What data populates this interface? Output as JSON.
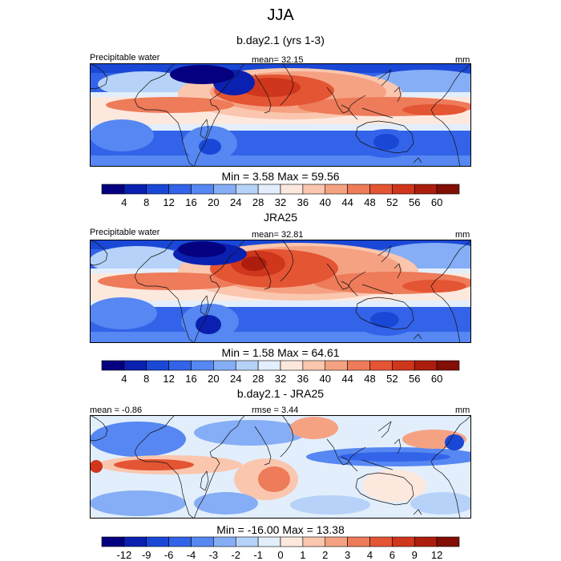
{
  "chart_data": {
    "type": "heatmap",
    "title": "JJA",
    "colors_main": [
      "#05007f",
      "#0a20b0",
      "#1a48d6",
      "#3363e8",
      "#5687f2",
      "#86aef6",
      "#b6d2f8",
      "#e2eefb",
      "#fde8de",
      "#fac6ae",
      "#f5a283",
      "#ee7b59",
      "#e45533",
      "#d0361c",
      "#ac1d0e",
      "#820e06"
    ],
    "colors_diff": [
      "#05007f",
      "#0a20b0",
      "#1a48d6",
      "#3363e8",
      "#5687f2",
      "#86aef6",
      "#b6d2f8",
      "#e2eefb",
      "#fde8de",
      "#fac6ae",
      "#f5a283",
      "#ee7b59",
      "#e45533",
      "#d0361c",
      "#ac1d0e",
      "#820e06"
    ],
    "panels": [
      {
        "title": "b.day2.1 (yrs 1-3)",
        "left_label": "Precipitable water",
        "center_label": "mean=  32.15",
        "right_label": "mm",
        "minmax": "Min =   3.58 Max =  59.56",
        "levels": [
          "4",
          "8",
          "12",
          "16",
          "20",
          "24",
          "28",
          "32",
          "36",
          "40",
          "44",
          "48",
          "52",
          "56",
          "60"
        ]
      },
      {
        "title": "JRA25",
        "left_label": "Precipitable water",
        "center_label": "mean=  32.81",
        "right_label": "mm",
        "minmax": "Min =   1.58 Max =  64.61",
        "levels": [
          "4",
          "8",
          "12",
          "16",
          "20",
          "24",
          "28",
          "32",
          "36",
          "40",
          "44",
          "48",
          "52",
          "56",
          "60"
        ]
      },
      {
        "title": "b.day2.1 - JRA25",
        "left_label": "mean =  -0.86",
        "center_label": "rmse =   3.44",
        "right_label": "mm",
        "minmax": "Min = -16.00 Max =  13.38",
        "levels": [
          "-12",
          "-9",
          "-6",
          "-4",
          "-3",
          "-2",
          "-1",
          "0",
          "1",
          "2",
          "3",
          "4",
          "6",
          "9",
          "12"
        ]
      }
    ]
  }
}
